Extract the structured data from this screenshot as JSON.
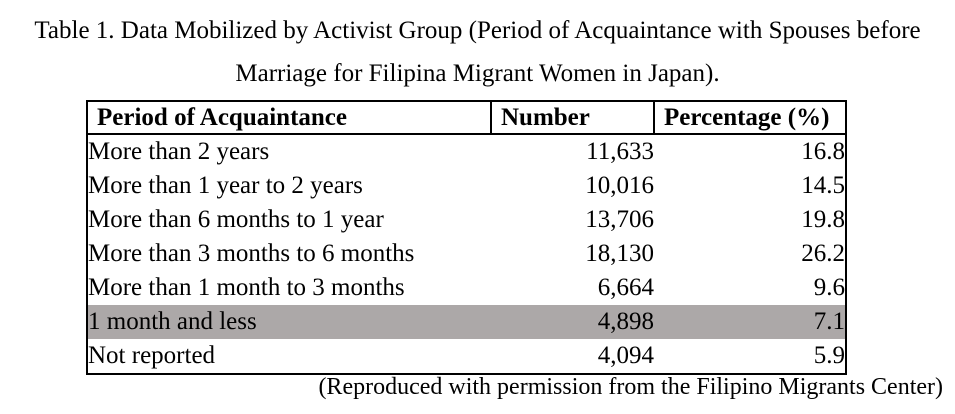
{
  "page": {
    "title_line1": "Table 1. Data Mobilized by Activist Group (Period of Acquaintance with Spouses before",
    "title_line2": "Marriage for Filipina Migrant Women in Japan).",
    "caption": "(Reproduced with permission from the Filipino Migrants Center)"
  },
  "table": {
    "columns": [
      "Period of Acquaintance",
      "Number",
      "Percentage (%)"
    ],
    "rows": [
      {
        "period": "More than 2 years",
        "number": "11,633",
        "percentage": "16.8",
        "highlighted": false
      },
      {
        "period": "More than 1 year to 2 years",
        "number": "10,016",
        "percentage": "14.5",
        "highlighted": false
      },
      {
        "period": "More than 6 months to 1 year",
        "number": "13,706",
        "percentage": "19.8",
        "highlighted": false
      },
      {
        "period": "More than 3 months to 6 months",
        "number": "18,130",
        "percentage": "26.2",
        "highlighted": false
      },
      {
        "period": "More than 1 month to 3 months",
        "number": "6,664",
        "percentage": "9.6",
        "highlighted": false
      },
      {
        "period": "1 month and less",
        "number": "4,898",
        "percentage": "7.1",
        "highlighted": true
      },
      {
        "period": "Not reported",
        "number": "4,094",
        "percentage": "5.9",
        "highlighted": false
      }
    ],
    "highlight_color": "#aca8a8",
    "border_color": "#000000"
  }
}
